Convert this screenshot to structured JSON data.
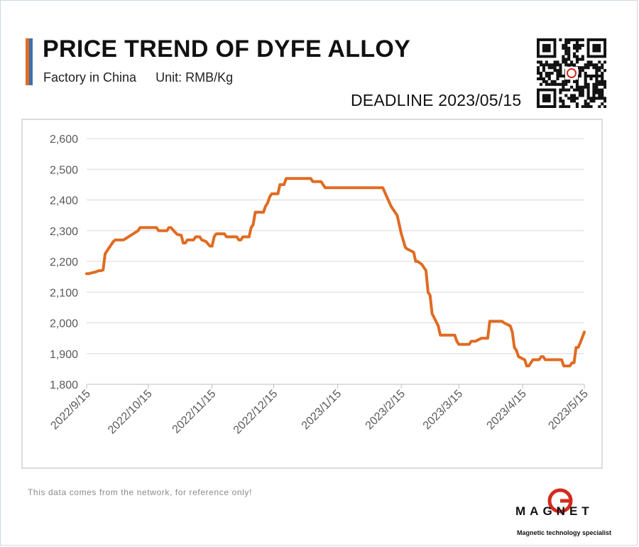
{
  "header": {
    "title": "PRICE TREND OF DYFE ALLOY",
    "subtitle_location": "Factory in China",
    "subtitle_unit": "Unit: RMB/Kg",
    "deadline": "DEADLINE 2023/05/15"
  },
  "colors": {
    "line": "#e06b22",
    "accent_orange": "#e06b22",
    "accent_blue": "#3f6fae",
    "logo_red": "#d42a1e",
    "grid": "#d9d9d9",
    "axis_text": "#595959"
  },
  "icons": {
    "qr": "qr-code-icon",
    "logo": "magnet-logo-icon"
  },
  "footer": {
    "note": "This data comes from the network, for reference only!",
    "logo_word": "MAGNET",
    "logo_tagline": "Magnetic technology specialist"
  },
  "chart_data": {
    "type": "line",
    "title": "PRICE TREND OF DYFE ALLOY",
    "ylabel": "",
    "xlabel": "",
    "ylim": [
      1800,
      2600
    ],
    "yticks": [
      1800,
      1900,
      2000,
      2100,
      2200,
      2300,
      2400,
      2500,
      2600
    ],
    "ytick_labels": [
      "1,800",
      "1,900",
      "2,000",
      "2,100",
      "2,200",
      "2,300",
      "2,400",
      "2,500",
      "2,600"
    ],
    "xlim": [
      "2022-09-15",
      "2023-05-15"
    ],
    "xtick_labels": [
      "2022/9/15",
      "2022/10/15",
      "2022/11/15",
      "2022/12/15",
      "2023/1/15",
      "2023/2/15",
      "2023/3/15",
      "2023/4/15",
      "2023/5/15"
    ],
    "xtick_dates": [
      "2022-09-15",
      "2022-10-15",
      "2022-11-15",
      "2022-12-15",
      "2023-01-15",
      "2023-02-15",
      "2023-03-15",
      "2023-04-15",
      "2023-05-15"
    ],
    "grid": "horizontal",
    "legend": "none",
    "series": [
      {
        "points": [
          [
            "2022-09-15",
            2160
          ],
          [
            "2022-09-16",
            2160
          ],
          [
            "2022-09-17",
            2162
          ],
          [
            "2022-09-19",
            2165
          ],
          [
            "2022-09-21",
            2170
          ],
          [
            "2022-09-22",
            2170
          ],
          [
            "2022-09-23",
            2172
          ],
          [
            "2022-09-24",
            2225
          ],
          [
            "2022-09-26",
            2245
          ],
          [
            "2022-09-28",
            2265
          ],
          [
            "2022-09-29",
            2270
          ],
          [
            "2022-10-01",
            2270
          ],
          [
            "2022-10-03",
            2270
          ],
          [
            "2022-10-10",
            2300
          ],
          [
            "2022-10-11",
            2310
          ],
          [
            "2022-10-19",
            2310
          ],
          [
            "2022-10-20",
            2300
          ],
          [
            "2022-10-24",
            2300
          ],
          [
            "2022-10-25",
            2310
          ],
          [
            "2022-10-26",
            2310
          ],
          [
            "2022-10-28",
            2295
          ],
          [
            "2022-10-29",
            2288
          ],
          [
            "2022-10-31",
            2285
          ],
          [
            "2022-11-01",
            2260
          ],
          [
            "2022-11-02",
            2260
          ],
          [
            "2022-11-03",
            2270
          ],
          [
            "2022-11-06",
            2270
          ],
          [
            "2022-11-07",
            2280
          ],
          [
            "2022-11-09",
            2280
          ],
          [
            "2022-11-10",
            2270
          ],
          [
            "2022-11-12",
            2265
          ],
          [
            "2022-11-14",
            2250
          ],
          [
            "2022-11-15",
            2250
          ],
          [
            "2022-11-16",
            2280
          ],
          [
            "2022-11-17",
            2290
          ],
          [
            "2022-11-21",
            2290
          ],
          [
            "2022-11-22",
            2280
          ],
          [
            "2022-11-27",
            2280
          ],
          [
            "2022-11-28",
            2270
          ],
          [
            "2022-11-29",
            2270
          ],
          [
            "2022-11-30",
            2280
          ],
          [
            "2022-12-03",
            2280
          ],
          [
            "2022-12-04",
            2310
          ],
          [
            "2022-12-05",
            2320
          ],
          [
            "2022-12-06",
            2360
          ],
          [
            "2022-12-10",
            2360
          ],
          [
            "2022-12-11",
            2380
          ],
          [
            "2022-12-12",
            2390
          ],
          [
            "2022-12-13",
            2410
          ],
          [
            "2022-12-14",
            2420
          ],
          [
            "2022-12-17",
            2420
          ],
          [
            "2022-12-18",
            2450
          ],
          [
            "2022-12-20",
            2450
          ],
          [
            "2022-12-21",
            2470
          ],
          [
            "2023-01-02",
            2470
          ],
          [
            "2023-01-03",
            2460
          ],
          [
            "2023-01-07",
            2460
          ],
          [
            "2023-01-09",
            2440
          ],
          [
            "2023-02-06",
            2440
          ],
          [
            "2023-02-08",
            2410
          ],
          [
            "2023-02-10",
            2380
          ],
          [
            "2023-02-13",
            2350
          ],
          [
            "2023-02-15",
            2290
          ],
          [
            "2023-02-17",
            2245
          ],
          [
            "2023-02-18",
            2240
          ],
          [
            "2023-02-21",
            2230
          ],
          [
            "2023-02-22",
            2200
          ],
          [
            "2023-02-23",
            2200
          ],
          [
            "2023-02-25",
            2190
          ],
          [
            "2023-02-27",
            2170
          ],
          [
            "2023-02-28",
            2100
          ],
          [
            "2023-03-01",
            2090
          ],
          [
            "2023-03-02",
            2030
          ],
          [
            "2023-03-05",
            1990
          ],
          [
            "2023-03-06",
            1960
          ],
          [
            "2023-03-13",
            1960
          ],
          [
            "2023-03-14",
            1940
          ],
          [
            "2023-03-15",
            1930
          ],
          [
            "2023-03-20",
            1930
          ],
          [
            "2023-03-21",
            1940
          ],
          [
            "2023-03-23",
            1940
          ],
          [
            "2023-03-26",
            1950
          ],
          [
            "2023-03-29",
            1950
          ],
          [
            "2023-03-30",
            2005
          ],
          [
            "2023-04-05",
            2005
          ],
          [
            "2023-04-06",
            2000
          ],
          [
            "2023-04-09",
            1990
          ],
          [
            "2023-04-10",
            1970
          ],
          [
            "2023-04-11",
            1920
          ],
          [
            "2023-04-12",
            1910
          ],
          [
            "2023-04-13",
            1890
          ],
          [
            "2023-04-16",
            1880
          ],
          [
            "2023-04-17",
            1860
          ],
          [
            "2023-04-18",
            1860
          ],
          [
            "2023-04-19",
            1870
          ],
          [
            "2023-04-20",
            1880
          ],
          [
            "2023-04-23",
            1880
          ],
          [
            "2023-04-24",
            1890
          ],
          [
            "2023-04-25",
            1890
          ],
          [
            "2023-04-26",
            1880
          ],
          [
            "2023-05-04",
            1880
          ],
          [
            "2023-05-05",
            1860
          ],
          [
            "2023-05-08",
            1860
          ],
          [
            "2023-05-09",
            1870
          ],
          [
            "2023-05-10",
            1870
          ],
          [
            "2023-05-11",
            1920
          ],
          [
            "2023-05-12",
            1920
          ],
          [
            "2023-05-13",
            1935
          ],
          [
            "2023-05-15",
            1970
          ]
        ]
      }
    ]
  }
}
